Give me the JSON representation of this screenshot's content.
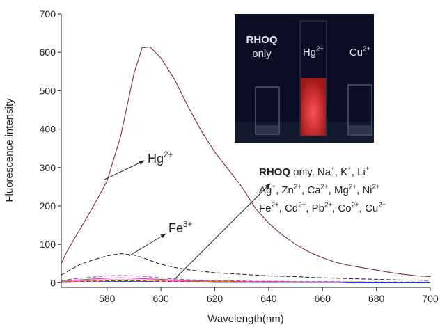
{
  "chart_data": {
    "type": "line",
    "x_label": "Wavelength(nm)",
    "y_label": "Fluorescence intensity",
    "xlim": [
      563,
      700
    ],
    "ylim": [
      -12,
      700
    ],
    "xticks": [
      580,
      600,
      620,
      640,
      660,
      680,
      700
    ],
    "yticks": [
      0,
      100,
      200,
      300,
      400,
      500,
      600,
      700
    ],
    "x": [
      563,
      565,
      570,
      575,
      580,
      585,
      590,
      593,
      596,
      600,
      605,
      610,
      615,
      620,
      625,
      630,
      635,
      640,
      645,
      650,
      655,
      660,
      665,
      670,
      675,
      680,
      685,
      690,
      695,
      700
    ],
    "series": [
      {
        "color": "#7a2e2e",
        "dash": false,
        "values": [
          50,
          80,
          140,
          200,
          265,
          380,
          545,
          612,
          614,
          585,
          530,
          460,
          395,
          340,
          295,
          250,
          195,
          155,
          125,
          100,
          80,
          65,
          53,
          45,
          39,
          33,
          27,
          22,
          18,
          16
        ]
      },
      {
        "color": "#222244",
        "dash": true,
        "values": [
          20,
          28,
          48,
          60,
          70,
          76,
          72,
          66,
          58,
          48,
          40,
          34,
          30,
          26,
          24,
          22,
          20,
          18,
          17,
          16,
          14,
          13,
          12,
          11,
          10,
          9,
          8,
          7,
          7,
          6
        ]
      },
      {
        "color": "#9b4fb0",
        "dash": true,
        "values": [
          5,
          8,
          12,
          15,
          18,
          19,
          18,
          17,
          15,
          13,
          10,
          8,
          7,
          6,
          5,
          5,
          4,
          4,
          4,
          3,
          3,
          3,
          3,
          2,
          2,
          2,
          2,
          2,
          2,
          2
        ]
      },
      {
        "color": "#d62fb8",
        "dash": false,
        "values": [
          3,
          5,
          8,
          10,
          12,
          13,
          12,
          11,
          10,
          9,
          7,
          6,
          5,
          4,
          4,
          3,
          3,
          3,
          3,
          2,
          2,
          2,
          2,
          2,
          2,
          1,
          1,
          1,
          1,
          1
        ]
      },
      {
        "color": "#e88a1a",
        "dash": false,
        "values": [
          2,
          3,
          5,
          6,
          8,
          8,
          8,
          7,
          7,
          6,
          5,
          4,
          3,
          3,
          3,
          2,
          2,
          2,
          2,
          2,
          1,
          1,
          1,
          1,
          1,
          1,
          1,
          1,
          1,
          1
        ]
      },
      {
        "color": "#d02020",
        "dash": true,
        "values": [
          1,
          2,
          3,
          4,
          5,
          5,
          5,
          5,
          4,
          4,
          3,
          3,
          2,
          2,
          2,
          2,
          1,
          1,
          1,
          1,
          1,
          1,
          1,
          1,
          1,
          1,
          1,
          1,
          1,
          1
        ]
      },
      {
        "color": "#2040c0",
        "dash": false,
        "values": [
          1,
          1,
          2,
          2,
          3,
          3,
          3,
          3,
          3,
          2,
          2,
          2,
          2,
          1,
          1,
          1,
          1,
          1,
          1,
          1,
          1,
          1,
          1,
          0,
          0,
          0,
          0,
          0,
          0,
          0
        ]
      }
    ],
    "annotations": [
      {
        "lines": [
          [
            {
              "t": "Hg",
              "sup": "2+"
            }
          ]
        ]
      },
      {
        "lines": [
          [
            {
              "t": "Fe",
              "sup": "3+"
            }
          ]
        ]
      },
      {
        "lines": [
          [
            {
              "t": "RHOQ",
              "bold": true
            },
            {
              "t": " only, Na",
              "sup": "+"
            },
            {
              "t": ", K",
              "sup": "+"
            },
            {
              "t": ", Li",
              "sup": "+"
            }
          ],
          [
            {
              "t": "Ag",
              "sup": "+"
            },
            {
              "t": ", Zn",
              "sup": "2+"
            },
            {
              "t": ", Ca",
              "sup": "2+"
            },
            {
              "t": ", Mg",
              "sup": "2+"
            },
            {
              "t": ", Ni",
              "sup": "2+"
            }
          ],
          [
            {
              "t": "Fe",
              "sup": "2+"
            },
            {
              "t": ", Cd",
              "sup": "2+"
            },
            {
              "t": ", Pb",
              "sup": "2+"
            },
            {
              "t": ", Co",
              "sup": "2+"
            },
            {
              "t": ", Cu",
              "sup": "2+"
            }
          ]
        ]
      }
    ],
    "inset": {
      "labels": [
        {
          "lines": [
            [
              {
                "t": "RHOQ",
                "bold": true
              }
            ],
            [
              {
                "t": "only"
              }
            ]
          ]
        },
        {
          "lines": [
            [
              {
                "t": "Hg",
                "sup": "2+"
              }
            ]
          ]
        },
        {
          "lines": [
            [
              {
                "t": "Cu",
                "sup": "2+"
              }
            ]
          ]
        }
      ]
    }
  }
}
